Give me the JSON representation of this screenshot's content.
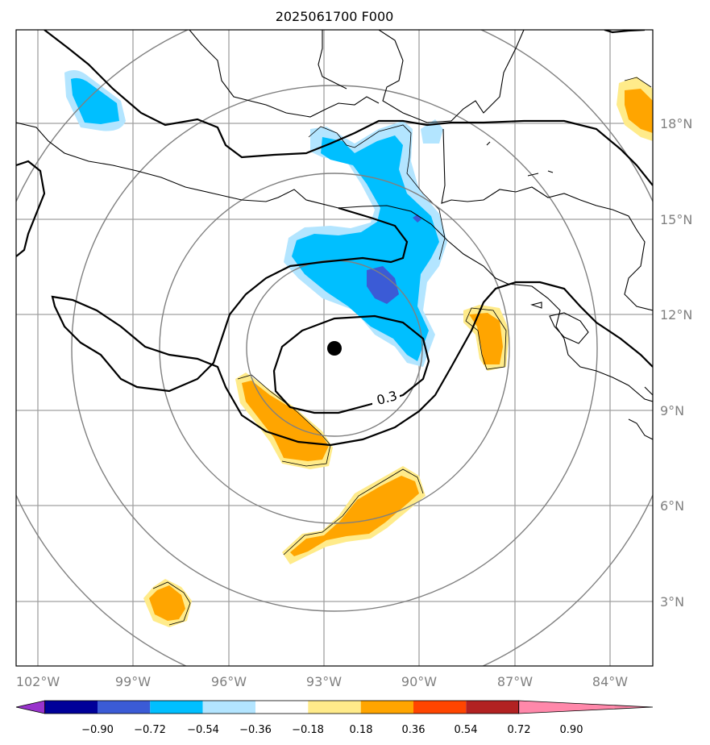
{
  "title": "2025061700 F000",
  "map": {
    "lon_ticks": [
      "102°W",
      "99°W",
      "96°W",
      "93°W",
      "90°W",
      "87°W",
      "84°W"
    ],
    "lat_ticks": [
      "18°N",
      "15°N",
      "12°N",
      "9°N",
      "6°N",
      "3°N"
    ],
    "contour_label": "0.3",
    "center_marker": "storm-center",
    "grid_color": "#a0a0a0",
    "range_ring_color": "#808080"
  },
  "colorbar": {
    "labels": [
      "−0.90",
      "−0.72",
      "−0.54",
      "−0.36",
      "−0.18",
      "0.18",
      "0.36",
      "0.54",
      "0.72",
      "0.90"
    ],
    "colors": [
      "#9933cc",
      "#000099",
      "#3b5bd6",
      "#00bfff",
      "#b3e5ff",
      "#ffffff",
      "#ffeb8a",
      "#ffa500",
      "#ff4500",
      "#b22222",
      "#ff88aa"
    ]
  }
}
